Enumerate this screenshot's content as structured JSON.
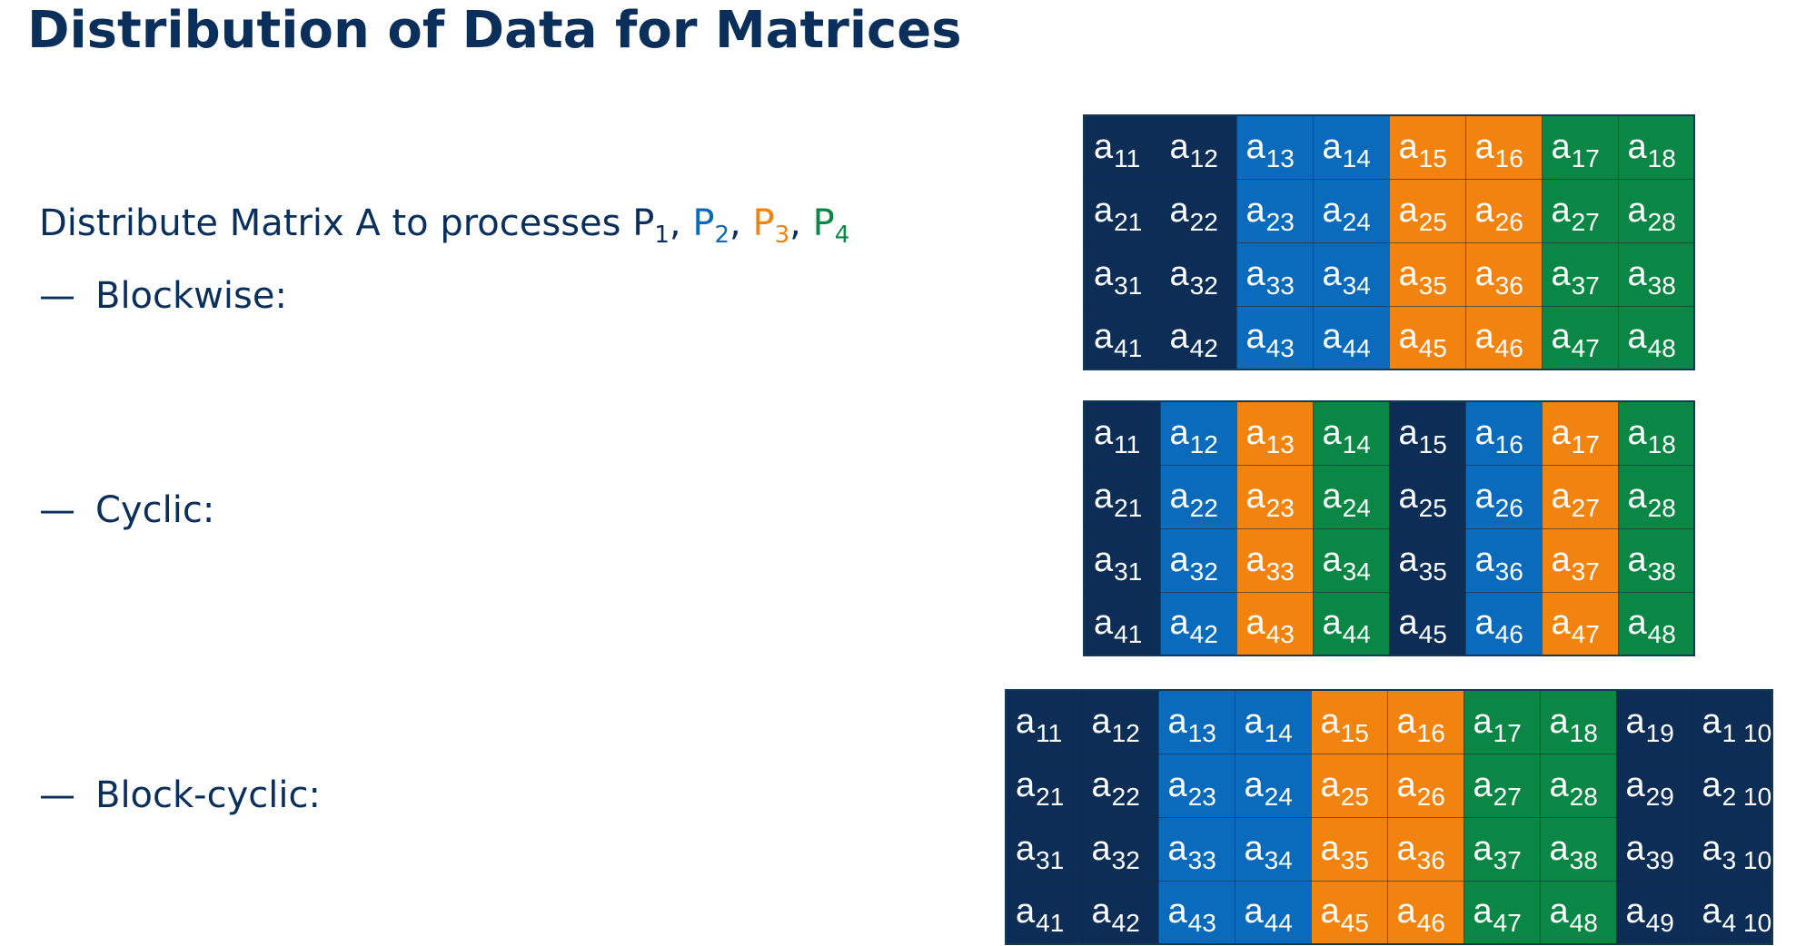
{
  "title": "Distribution of Data for Matrices",
  "intro": {
    "prefix": "Distribute Matrix A to processes ",
    "processes": [
      {
        "letter": "P",
        "sub": "1",
        "sep": ", "
      },
      {
        "letter": "P",
        "sub": "2",
        "sep": ", "
      },
      {
        "letter": "P",
        "sub": "3",
        "sep": ", "
      },
      {
        "letter": "P",
        "sub": "4",
        "sep": ""
      }
    ]
  },
  "colors": {
    "P1": "#0c2d55",
    "P2": "#0a6bbd",
    "P3": "#f2830f",
    "P4": "#0a8744",
    "text": "#0b2f5b"
  },
  "dash": "—",
  "distributions": [
    {
      "label": "Blockwise:",
      "rows": [
        [
          {
            "t": "a",
            "s": "11",
            "p": 1
          },
          {
            "t": "a",
            "s": "12",
            "p": 1
          },
          {
            "t": "a",
            "s": "13",
            "p": 2
          },
          {
            "t": "a",
            "s": "14",
            "p": 2
          },
          {
            "t": "a",
            "s": "15",
            "p": 3
          },
          {
            "t": "a",
            "s": "16",
            "p": 3
          },
          {
            "t": "a",
            "s": "17",
            "p": 4
          },
          {
            "t": "a",
            "s": "18",
            "p": 4
          }
        ],
        [
          {
            "t": "a",
            "s": "21",
            "p": 1
          },
          {
            "t": "a",
            "s": "22",
            "p": 1
          },
          {
            "t": "a",
            "s": "23",
            "p": 2
          },
          {
            "t": "a",
            "s": "24",
            "p": 2
          },
          {
            "t": "a",
            "s": "25",
            "p": 3
          },
          {
            "t": "a",
            "s": "26",
            "p": 3
          },
          {
            "t": "a",
            "s": "27",
            "p": 4
          },
          {
            "t": "a",
            "s": "28",
            "p": 4
          }
        ],
        [
          {
            "t": "a",
            "s": "31",
            "p": 1
          },
          {
            "t": "a",
            "s": "32",
            "p": 1
          },
          {
            "t": "a",
            "s": "33",
            "p": 2
          },
          {
            "t": "a",
            "s": "34",
            "p": 2
          },
          {
            "t": "a",
            "s": "35",
            "p": 3
          },
          {
            "t": "a",
            "s": "36",
            "p": 3
          },
          {
            "t": "a",
            "s": "37",
            "p": 4
          },
          {
            "t": "a",
            "s": "38",
            "p": 4
          }
        ],
        [
          {
            "t": "a",
            "s": "41",
            "p": 1
          },
          {
            "t": "a",
            "s": "42",
            "p": 1
          },
          {
            "t": "a",
            "s": "43",
            "p": 2
          },
          {
            "t": "a",
            "s": "44",
            "p": 2
          },
          {
            "t": "a",
            "s": "45",
            "p": 3
          },
          {
            "t": "a",
            "s": "46",
            "p": 3
          },
          {
            "t": "a",
            "s": "47",
            "p": 4
          },
          {
            "t": "a",
            "s": "48",
            "p": 4
          }
        ]
      ]
    },
    {
      "label": "Cyclic:",
      "rows": [
        [
          {
            "t": "a",
            "s": "11",
            "p": 1
          },
          {
            "t": "a",
            "s": "12",
            "p": 2
          },
          {
            "t": "a",
            "s": "13",
            "p": 3
          },
          {
            "t": "a",
            "s": "14",
            "p": 4
          },
          {
            "t": "a",
            "s": "15",
            "p": 1
          },
          {
            "t": "a",
            "s": "16",
            "p": 2
          },
          {
            "t": "a",
            "s": "17",
            "p": 3
          },
          {
            "t": "a",
            "s": "18",
            "p": 4
          }
        ],
        [
          {
            "t": "a",
            "s": "21",
            "p": 1
          },
          {
            "t": "a",
            "s": "22",
            "p": 2
          },
          {
            "t": "a",
            "s": "23",
            "p": 3
          },
          {
            "t": "a",
            "s": "24",
            "p": 4
          },
          {
            "t": "a",
            "s": "25",
            "p": 1
          },
          {
            "t": "a",
            "s": "26",
            "p": 2
          },
          {
            "t": "a",
            "s": "27",
            "p": 3
          },
          {
            "t": "a",
            "s": "28",
            "p": 4
          }
        ],
        [
          {
            "t": "a",
            "s": "31",
            "p": 1
          },
          {
            "t": "a",
            "s": "32",
            "p": 2
          },
          {
            "t": "a",
            "s": "33",
            "p": 3
          },
          {
            "t": "a",
            "s": "34",
            "p": 4
          },
          {
            "t": "a",
            "s": "35",
            "p": 1
          },
          {
            "t": "a",
            "s": "36",
            "p": 2
          },
          {
            "t": "a",
            "s": "37",
            "p": 3
          },
          {
            "t": "a",
            "s": "38",
            "p": 4
          }
        ],
        [
          {
            "t": "a",
            "s": "41",
            "p": 1
          },
          {
            "t": "a",
            "s": "42",
            "p": 2
          },
          {
            "t": "a",
            "s": "43",
            "p": 3
          },
          {
            "t": "a",
            "s": "44",
            "p": 4
          },
          {
            "t": "a",
            "s": "45",
            "p": 1
          },
          {
            "t": "a",
            "s": "46",
            "p": 2
          },
          {
            "t": "a",
            "s": "47",
            "p": 3
          },
          {
            "t": "a",
            "s": "48",
            "p": 4
          }
        ]
      ]
    },
    {
      "label": "Block-cyclic:",
      "rows": [
        [
          {
            "t": "a",
            "s": "11",
            "p": 1
          },
          {
            "t": "a",
            "s": "12",
            "p": 1
          },
          {
            "t": "a",
            "s": "13",
            "p": 2
          },
          {
            "t": "a",
            "s": "14",
            "p": 2
          },
          {
            "t": "a",
            "s": "15",
            "p": 3
          },
          {
            "t": "a",
            "s": "16",
            "p": 3
          },
          {
            "t": "a",
            "s": "17",
            "p": 4
          },
          {
            "t": "a",
            "s": "18",
            "p": 4
          },
          {
            "t": "a",
            "s": "19",
            "p": 1
          },
          {
            "t": "a",
            "s": "1 10",
            "p": 1
          }
        ],
        [
          {
            "t": "a",
            "s": "21",
            "p": 1
          },
          {
            "t": "a",
            "s": "22",
            "p": 1
          },
          {
            "t": "a",
            "s": "23",
            "p": 2
          },
          {
            "t": "a",
            "s": "24",
            "p": 2
          },
          {
            "t": "a",
            "s": "25",
            "p": 3
          },
          {
            "t": "a",
            "s": "26",
            "p": 3
          },
          {
            "t": "a",
            "s": "27",
            "p": 4
          },
          {
            "t": "a",
            "s": "28",
            "p": 4
          },
          {
            "t": "a",
            "s": "29",
            "p": 1
          },
          {
            "t": "a",
            "s": "2 10",
            "p": 1
          }
        ],
        [
          {
            "t": "a",
            "s": "31",
            "p": 1
          },
          {
            "t": "a",
            "s": "32",
            "p": 1
          },
          {
            "t": "a",
            "s": "33",
            "p": 2
          },
          {
            "t": "a",
            "s": "34",
            "p": 2
          },
          {
            "t": "a",
            "s": "35",
            "p": 3
          },
          {
            "t": "a",
            "s": "36",
            "p": 3
          },
          {
            "t": "a",
            "s": "37",
            "p": 4
          },
          {
            "t": "a",
            "s": "38",
            "p": 4
          },
          {
            "t": "a",
            "s": "39",
            "p": 1
          },
          {
            "t": "a",
            "s": "3 10",
            "p": 1
          }
        ],
        [
          {
            "t": "a",
            "s": "41",
            "p": 1
          },
          {
            "t": "a",
            "s": "42",
            "p": 1
          },
          {
            "t": "a",
            "s": "43",
            "p": 2
          },
          {
            "t": "a",
            "s": "44",
            "p": 2
          },
          {
            "t": "a",
            "s": "45",
            "p": 3
          },
          {
            "t": "a",
            "s": "46",
            "p": 3
          },
          {
            "t": "a",
            "s": "47",
            "p": 4
          },
          {
            "t": "a",
            "s": "48",
            "p": 4
          },
          {
            "t": "a",
            "s": "49",
            "p": 1
          },
          {
            "t": "a",
            "s": "4 10",
            "p": 1
          }
        ]
      ]
    }
  ]
}
